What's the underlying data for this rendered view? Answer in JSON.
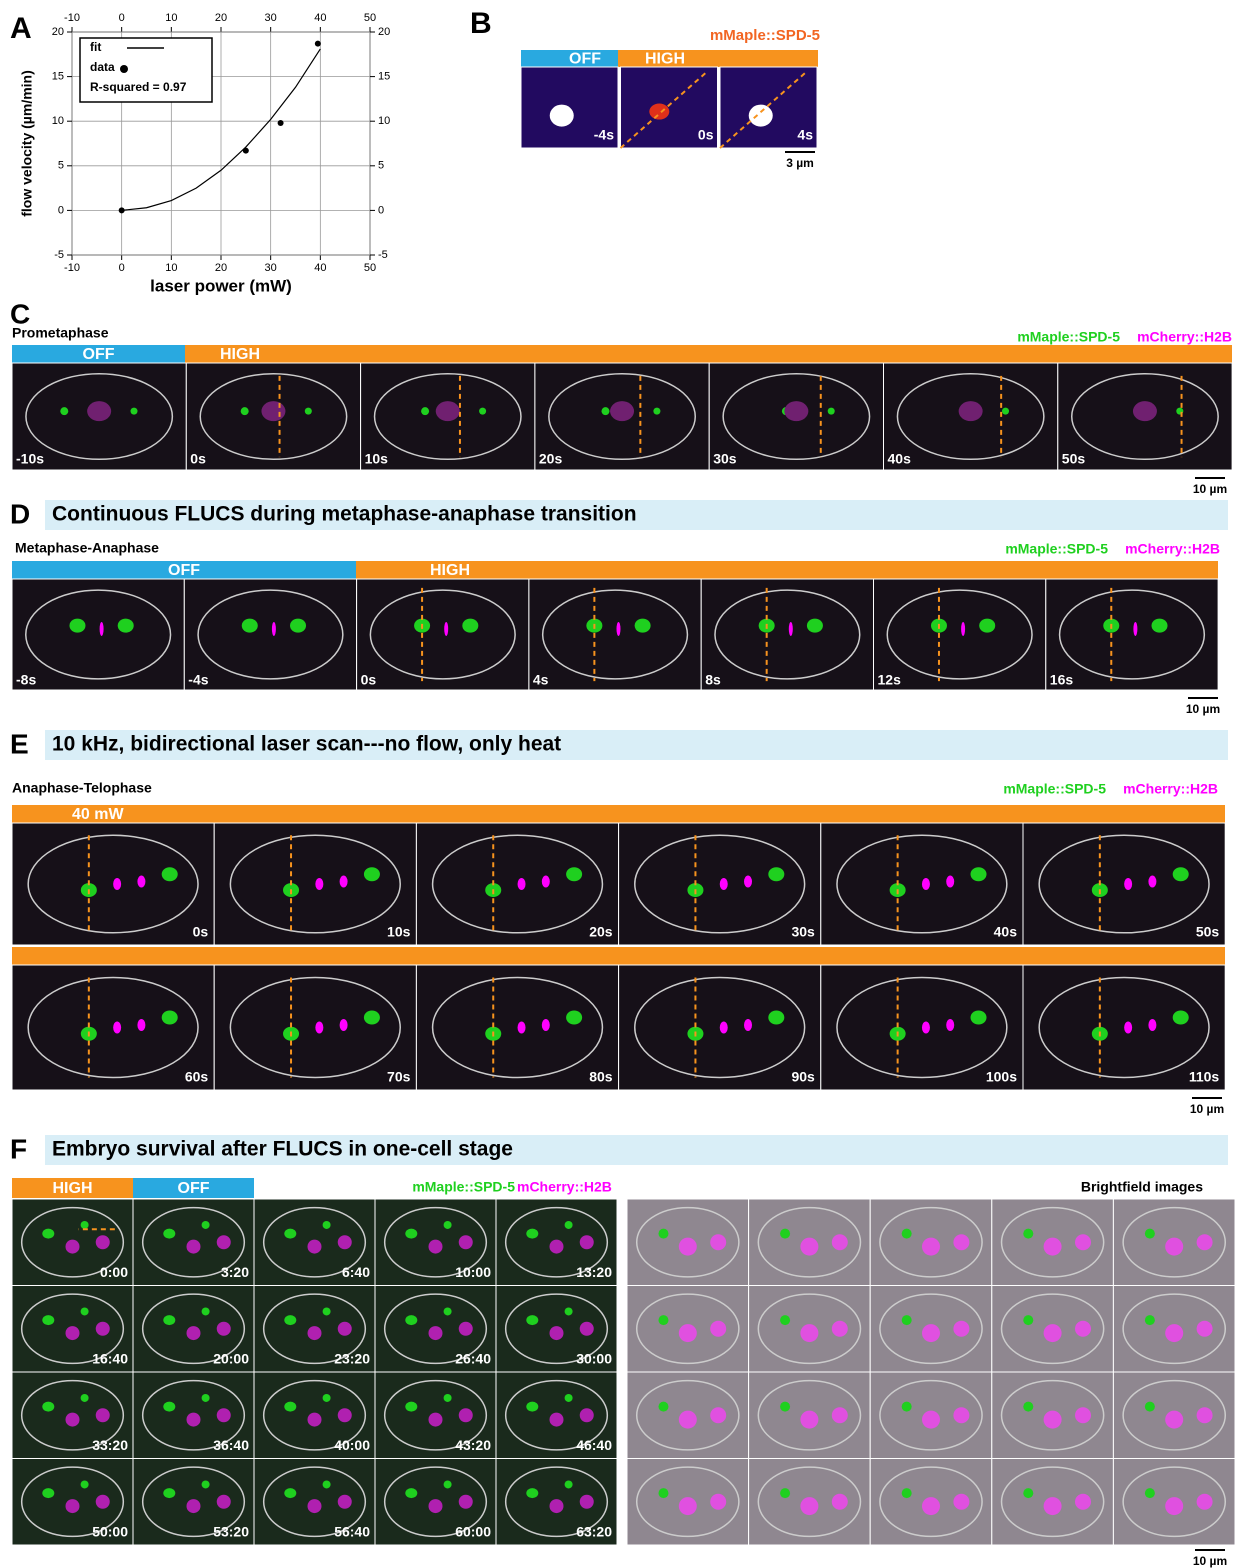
{
  "chart_data": {
    "type": "scatter",
    "letter": "A",
    "xlabel": "laser power (mW)",
    "ylabel": "flow velocity (µm/min)",
    "xlim": [
      -10,
      50
    ],
    "ylim": [
      -5,
      20
    ],
    "xticks": [
      -10,
      0,
      10,
      20,
      30,
      40,
      50
    ],
    "yticks": [
      -5,
      0,
      5,
      10,
      15,
      20
    ],
    "grid": true,
    "legend": "upper left",
    "annotation": "R-squared = 0.97",
    "series": [
      {
        "name": "fit",
        "type": "line",
        "color": "#000000",
        "x": [
          0,
          5,
          10,
          15,
          20,
          25,
          30,
          35,
          40
        ],
        "values": [
          0,
          0.3,
          1.1,
          2.5,
          4.5,
          7.1,
          10.2,
          13.8,
          18.1
        ]
      },
      {
        "name": "data",
        "type": "scatter",
        "color": "#000000",
        "x": [
          0,
          25,
          32,
          39.5
        ],
        "values": [
          0,
          6.7,
          9.8,
          18.7
        ]
      }
    ]
  },
  "panel_b": {
    "letter": "B",
    "channel": "mMaple::SPD-5",
    "bars": [
      "OFF",
      "HIGH"
    ],
    "times": [
      "-4s",
      "0s",
      "4s"
    ],
    "scale": "3 µm"
  },
  "panel_c": {
    "letter": "C",
    "stage": "Prometaphase",
    "channels": [
      "mMaple::SPD-5",
      "mCherry::H2B"
    ],
    "bars": [
      "OFF",
      "HIGH"
    ],
    "times": [
      "-10s",
      "0s",
      "10s",
      "20s",
      "30s",
      "40s",
      "50s"
    ],
    "scale": "10 µm"
  },
  "panel_d": {
    "letter": "D",
    "title": "Continuous FLUCS during metaphase-anaphase transition",
    "stage": "Metaphase-Anaphase",
    "channels": [
      "mMaple::SPD-5",
      "mCherry::H2B"
    ],
    "bars": [
      "OFF",
      "HIGH"
    ],
    "times": [
      "-8s",
      "-4s",
      "0s",
      "4s",
      "8s",
      "12s",
      "16s"
    ],
    "scale": "10 µm"
  },
  "panel_e": {
    "letter": "E",
    "title": "10 kHz, bidirectional laser scan---no flow, only heat",
    "stage": "Anaphase-Telophase",
    "channels": [
      "mMaple::SPD-5",
      "mCherry::H2B"
    ],
    "power": "40 mW",
    "times": [
      "0s",
      "10s",
      "20s",
      "30s",
      "40s",
      "50s",
      "60s",
      "70s",
      "80s",
      "90s",
      "100s",
      "110s"
    ],
    "scale": "10 µm"
  },
  "panel_f": {
    "letter": "F",
    "title": "Embryo survival after FLUCS in one-cell stage",
    "bars": [
      "HIGH",
      "OFF"
    ],
    "channels": [
      "mMaple::SPD-5",
      "mCherry::H2B"
    ],
    "brightfield": "Brightfield images",
    "times": [
      "0:00",
      "3:20",
      "6:40",
      "10:00",
      "13:20",
      "16:40",
      "20:00",
      "23:20",
      "26:40",
      "30:00",
      "33:20",
      "36:40",
      "40:00",
      "43:20",
      "46:40",
      "50:00",
      "53:20",
      "56:40",
      "60:00",
      "63:20"
    ],
    "scale": "10 µm"
  }
}
